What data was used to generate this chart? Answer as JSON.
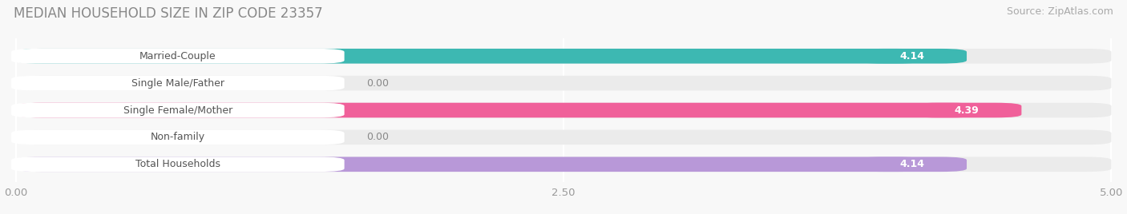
{
  "title": "MEDIAN HOUSEHOLD SIZE IN ZIP CODE 23357",
  "source": "Source: ZipAtlas.com",
  "categories": [
    "Married-Couple",
    "Single Male/Father",
    "Single Female/Mother",
    "Non-family",
    "Total Households"
  ],
  "values": [
    4.14,
    0.0,
    4.39,
    0.0,
    4.14
  ],
  "bar_colors": [
    "#3db8b2",
    "#a0b4e8",
    "#f0609a",
    "#f8cfa0",
    "#b898d8"
  ],
  "bar_labels": [
    "4.14",
    "0.00",
    "4.39",
    "0.00",
    "4.14"
  ],
  "xlim": [
    0,
    5.0
  ],
  "xticks": [
    0.0,
    2.5,
    5.0
  ],
  "xticklabels": [
    "0.00",
    "2.50",
    "5.00"
  ],
  "background_color": "#f8f8f8",
  "bar_bg_color": "#ebebeb",
  "title_fontsize": 12,
  "source_fontsize": 9,
  "label_fontsize": 9,
  "value_fontsize": 9
}
